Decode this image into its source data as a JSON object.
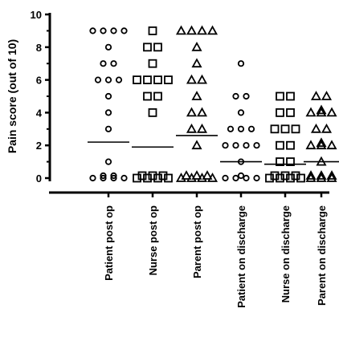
{
  "chart_data": {
    "type": "scatter",
    "ylabel": "Pain score (out of 10)",
    "ylim": [
      0,
      10
    ],
    "yticks": [
      0,
      2,
      4,
      6,
      8,
      10
    ],
    "categories": [
      "Patient post op",
      "Nurse post op",
      "Parent post op",
      "Patient on discharge",
      "Nurse on discharge",
      "Parent on discharge"
    ],
    "series": [
      {
        "marker": "circle",
        "values": [
          9,
          9,
          9,
          9,
          8,
          7,
          7,
          6,
          6,
          6,
          5,
          4,
          3,
          1,
          0,
          0,
          0,
          0,
          0,
          0
        ],
        "median_line": 2.2
      },
      {
        "marker": "square",
        "values": [
          9,
          8,
          8,
          7,
          6,
          6,
          6,
          6,
          5,
          5,
          4,
          0,
          0,
          0,
          0,
          0,
          0,
          0
        ],
        "median_line": 1.9
      },
      {
        "marker": "triangle",
        "values": [
          9,
          9,
          9,
          9,
          8,
          7,
          6,
          6,
          5,
          4,
          4,
          3,
          3,
          2,
          0,
          0,
          0,
          0,
          0,
          0,
          0
        ],
        "median_line": 2.6
      },
      {
        "marker": "circle",
        "values": [
          7,
          5,
          5,
          4,
          3,
          3,
          3,
          2,
          2,
          2,
          2,
          1,
          0,
          0,
          0,
          0,
          0
        ],
        "median_line": 1.0
      },
      {
        "marker": "square",
        "values": [
          5,
          5,
          4,
          4,
          3,
          3,
          3,
          2,
          2,
          1,
          1,
          0,
          0,
          0,
          0,
          0,
          0,
          0
        ],
        "median_line": 0.85
      },
      {
        "marker": "triangle",
        "values": [
          5,
          5,
          4,
          4,
          4,
          4,
          3,
          3,
          2,
          2,
          2,
          2,
          1,
          0,
          0,
          0,
          0,
          0,
          0
        ],
        "median_line": 1.0
      }
    ],
    "marker_color": "#000000",
    "grid": false
  }
}
